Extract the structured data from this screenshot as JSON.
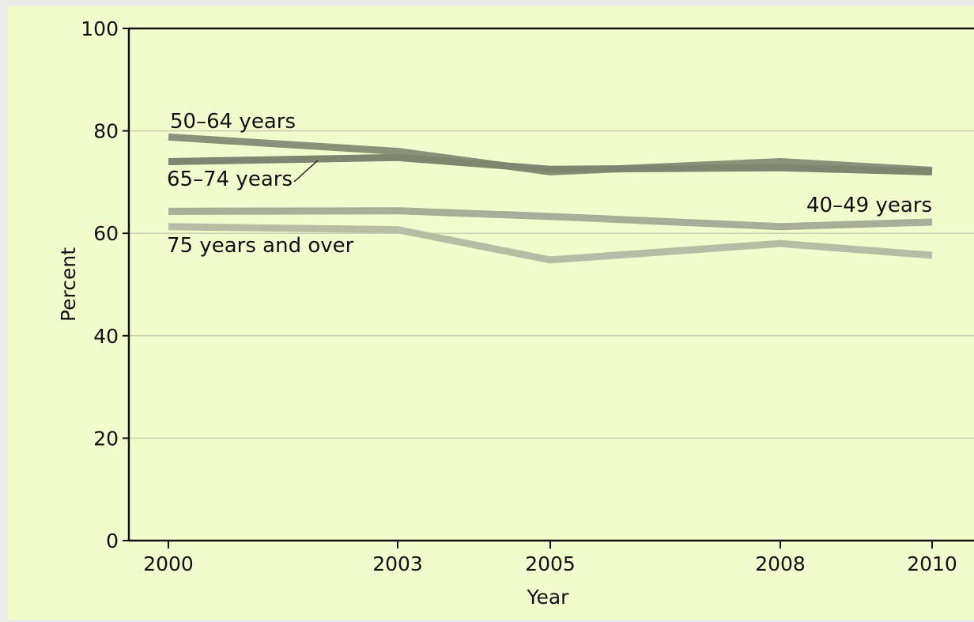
{
  "chart_data": {
    "type": "line",
    "title": "",
    "xlabel": "Year",
    "ylabel": "Percent",
    "x": [
      2000,
      2003,
      2005,
      2008,
      2010
    ],
    "xticks": [
      "2000",
      "2003",
      "2005",
      "2008",
      "2010"
    ],
    "yticks": [
      "0",
      "20",
      "40",
      "60",
      "80",
      "100"
    ],
    "ylim": [
      0,
      100
    ],
    "grid": "horizontal",
    "legend": "direct labels",
    "series": [
      {
        "name": "50–64 years",
        "color": "#8a9178",
        "values": [
          78.8,
          76.0,
          72.0,
          74.0,
          72.3
        ]
      },
      {
        "name": "65–74 years",
        "color": "#7f8670",
        "values": [
          74.0,
          74.8,
          72.5,
          72.8,
          72.0
        ]
      },
      {
        "name": "40–49 years",
        "color": "#a8ae98",
        "values": [
          64.3,
          64.4,
          63.3,
          61.3,
          62.2
        ]
      },
      {
        "name": "75 years and over",
        "color": "#b7bca4",
        "values": [
          61.3,
          60.7,
          54.8,
          58.0,
          55.7
        ]
      }
    ]
  }
}
